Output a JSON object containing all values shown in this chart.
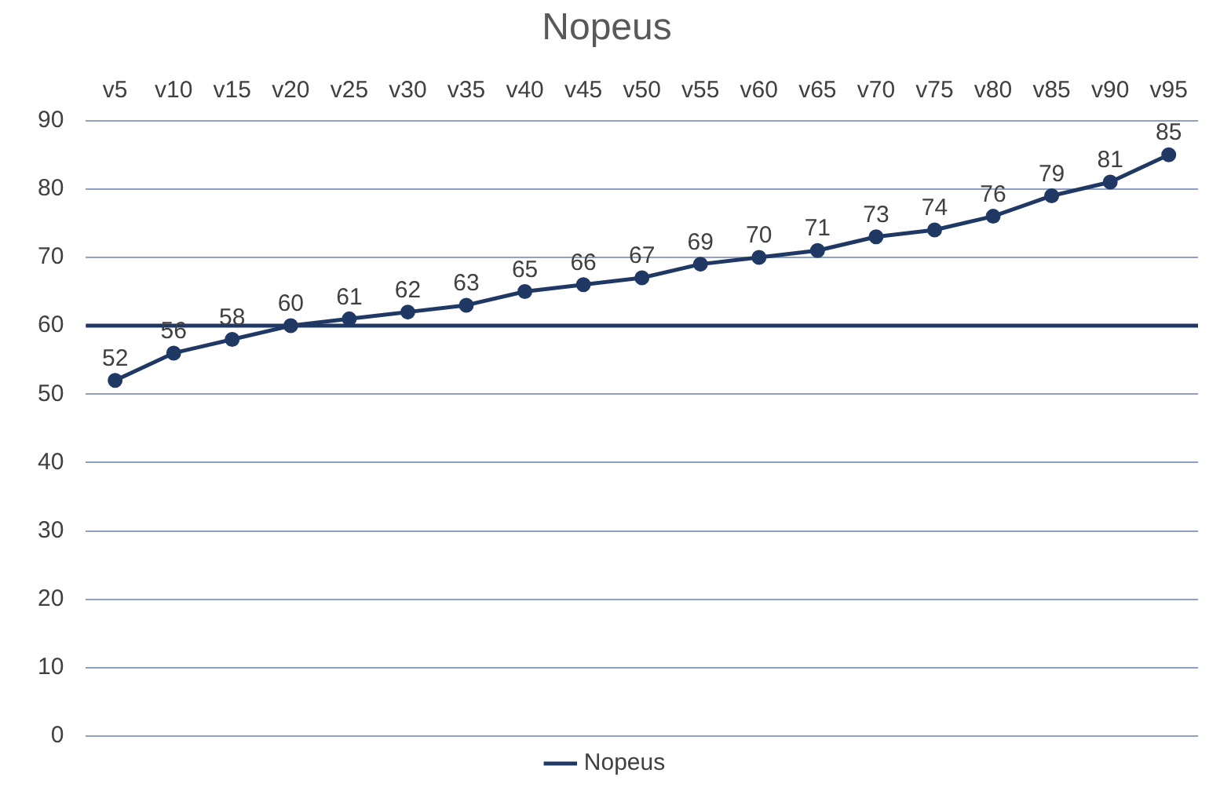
{
  "chart_data": {
    "type": "line",
    "title": "Nopeus",
    "categories": [
      "v5",
      "v10",
      "v15",
      "v20",
      "v25",
      "v30",
      "v35",
      "v40",
      "v45",
      "v50",
      "v55",
      "v60",
      "v65",
      "v70",
      "v75",
      "v80",
      "v85",
      "v90",
      "v95"
    ],
    "series": [
      {
        "name": "Nopeus",
        "color": "#1f3864",
        "values": [
          52,
          56,
          58,
          60,
          61,
          62,
          63,
          65,
          66,
          67,
          69,
          70,
          71,
          73,
          74,
          76,
          79,
          81,
          85
        ]
      }
    ],
    "ylim": [
      0,
      90
    ],
    "yticks": [
      0,
      10,
      20,
      30,
      40,
      50,
      60,
      70,
      80,
      90
    ],
    "grid": "y",
    "legend": "bottom",
    "marker": "circle",
    "line_style": "solid",
    "data_labels": true,
    "ref_lines": [
      {
        "axis": "y",
        "value": 60,
        "color": "#1f3864"
      }
    ]
  }
}
